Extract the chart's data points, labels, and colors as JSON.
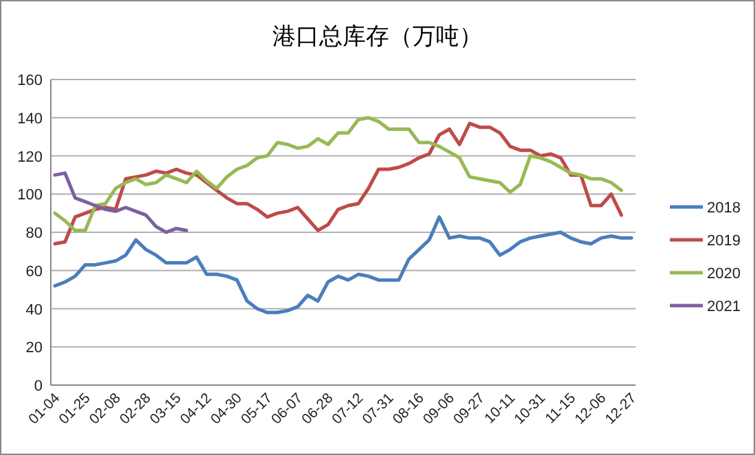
{
  "chart_data": {
    "type": "line",
    "title": "港口总库存（万吨）",
    "categories": [
      "01-04",
      null,
      null,
      "01-25",
      null,
      null,
      "02-08",
      null,
      null,
      "02-28",
      null,
      null,
      "03-15",
      null,
      null,
      "04-12",
      null,
      null,
      "04-30",
      null,
      null,
      "05-17",
      null,
      null,
      "06-07",
      null,
      null,
      "06-28",
      null,
      null,
      "07-12",
      null,
      null,
      "07-31",
      null,
      null,
      "08-16",
      null,
      null,
      "09-06",
      null,
      null,
      "09-27",
      null,
      null,
      "10-11",
      null,
      null,
      "10-31",
      null,
      null,
      "11-15",
      null,
      null,
      "12-06",
      null,
      null,
      "12-27"
    ],
    "series": [
      {
        "name": "2018",
        "color": "#4a7ebb",
        "values": [
          52,
          54,
          57,
          63,
          63,
          64,
          65,
          68,
          76,
          71,
          68,
          64,
          64,
          64,
          67,
          58,
          58,
          57,
          55,
          44,
          40,
          38,
          38,
          39,
          41,
          47,
          44,
          54,
          57,
          55,
          58,
          57,
          55,
          55,
          55,
          66,
          71,
          76,
          88,
          77,
          78,
          77,
          77,
          75,
          68,
          71,
          75,
          77,
          78,
          79,
          80,
          77,
          75,
          74,
          77,
          78,
          77,
          77
        ]
      },
      {
        "name": "2019",
        "color": "#be4b48",
        "values": [
          74,
          75,
          88,
          90,
          92,
          93,
          92,
          108,
          109,
          110,
          112,
          111,
          113,
          111,
          110,
          106,
          102,
          98,
          95,
          95,
          92,
          88,
          90,
          91,
          93,
          87,
          81,
          84,
          92,
          94,
          95,
          103,
          113,
          113,
          114,
          116,
          119,
          121,
          131,
          134,
          126,
          137,
          135,
          135,
          132,
          125,
          123,
          123,
          120,
          121,
          119,
          110,
          110,
          94,
          94,
          100,
          89,
          null
        ]
      },
      {
        "name": "2020",
        "color": "#98b954",
        "values": [
          90,
          86,
          81,
          81,
          94,
          95,
          103,
          106,
          108,
          105,
          106,
          110,
          108,
          106,
          112,
          107,
          103,
          109,
          113,
          115,
          119,
          120,
          127,
          126,
          124,
          125,
          129,
          126,
          132,
          132,
          139,
          140,
          138,
          134,
          134,
          134,
          127,
          127,
          125,
          122,
          119,
          109,
          108,
          107,
          106,
          101,
          105,
          120,
          119,
          117,
          114,
          111,
          110,
          108,
          108,
          106,
          102,
          null
        ]
      },
      {
        "name": "2021",
        "color": "#7d60a0",
        "values": [
          110,
          111,
          98,
          96,
          94,
          92,
          91,
          93,
          91,
          89,
          83,
          80,
          82,
          81,
          null,
          null,
          null,
          null,
          null,
          null,
          null,
          null,
          null,
          null,
          null,
          null,
          null,
          null,
          null,
          null,
          null,
          null,
          null,
          null,
          null,
          null,
          null,
          null,
          null,
          null,
          null,
          null,
          null,
          null,
          null,
          null,
          null,
          null,
          null,
          null,
          null,
          null,
          null,
          null,
          null,
          null,
          null,
          null
        ]
      }
    ],
    "ylim": [
      0,
      160
    ],
    "yticks": [
      0,
      20,
      40,
      60,
      80,
      100,
      120,
      140,
      160
    ],
    "grid": "y",
    "legend": "right",
    "marker": "none",
    "line_style": "solid"
  }
}
